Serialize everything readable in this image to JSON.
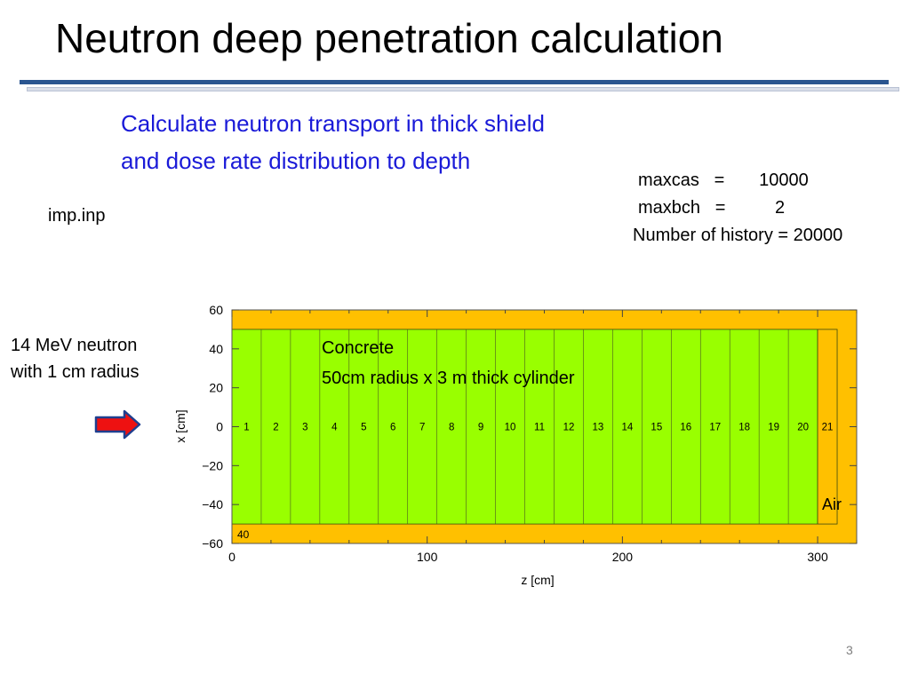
{
  "slide": {
    "title": "Neutron deep penetration calculation",
    "subtitle_lines": [
      "Calculate neutron transport in thick shield",
      "and dose rate distribution to depth"
    ],
    "params": {
      "line1": "maxcas   =       10000",
      "line2": "maxbch   =          2",
      "line3": "Number of history = 20000"
    },
    "input_file": "imp.inp",
    "source_label_lines": [
      "14 MeV neutron",
      "with 1 cm radius"
    ],
    "page_number": "3"
  },
  "figure": {
    "concrete_label_lines": [
      "Concrete",
      "50cm radius x 3 m thick cylinder"
    ],
    "air_label": "Air",
    "outer_region_number": "40",
    "cell_numbers": [
      "1",
      "2",
      "3",
      "4",
      "5",
      "6",
      "7",
      "8",
      "9",
      "10",
      "11",
      "12",
      "13",
      "14",
      "15",
      "16",
      "17",
      "18",
      "19",
      "20",
      "21"
    ],
    "xlabel": "z [cm]",
    "ylabel": "x [cm]",
    "x_ticks": [
      "0",
      "100",
      "200",
      "300"
    ],
    "y_ticks": [
      "60",
      "40",
      "20",
      "0",
      "−20",
      "−40",
      "−60"
    ],
    "xlim": [
      0,
      320
    ],
    "ylim": [
      -60,
      60
    ],
    "concrete_z": [
      0,
      300
    ],
    "air_z": [
      300,
      310
    ],
    "cylinder_x": [
      -50,
      50
    ],
    "colors": {
      "void": "#ffc000",
      "concrete": "#99ff00",
      "air": "#ffc000",
      "arrow": "#ee1111",
      "arrow_outline": "#1f3f8f",
      "subtitle": "#1a1ad8",
      "rule": "#2a5590"
    }
  }
}
